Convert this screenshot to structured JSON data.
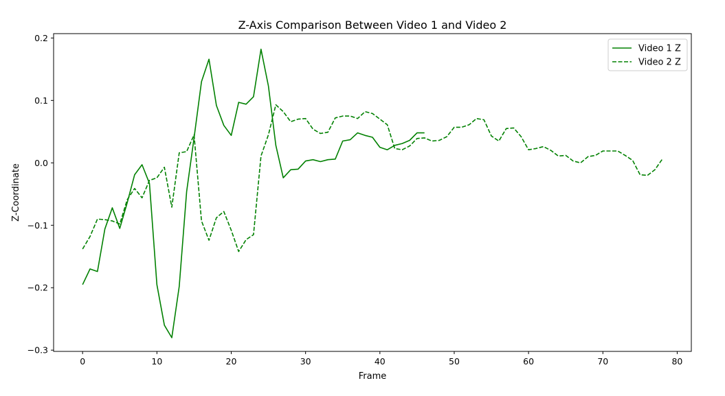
{
  "chart_data": {
    "type": "line",
    "title": "Z-Axis Comparison Between Video 1 and Video 2",
    "xlabel": "Frame",
    "ylabel": "Z-Coordinate",
    "xlim": [
      -3.9,
      81.9
    ],
    "ylim": [
      -0.302,
      0.207
    ],
    "xticks": [
      0,
      10,
      20,
      30,
      40,
      50,
      60,
      70,
      80
    ],
    "xtick_labels": [
      "0",
      "10",
      "20",
      "30",
      "40",
      "50",
      "60",
      "70",
      "80"
    ],
    "yticks": [
      -0.3,
      -0.2,
      -0.1,
      0.0,
      0.1,
      0.2
    ],
    "ytick_labels": [
      "−0.3",
      "−0.2",
      "−0.1",
      "0.0",
      "0.1",
      "0.2"
    ],
    "grid": false,
    "legend_position": "top-right",
    "colors": {
      "series": "#008000",
      "axes": "#000000",
      "background": "#ffffff"
    },
    "series": [
      {
        "name": "Video 1 Z",
        "style": "solid",
        "x": [
          0,
          1,
          2,
          3,
          4,
          5,
          6,
          7,
          8,
          9,
          10,
          11,
          12,
          13,
          14,
          15,
          16,
          17,
          18,
          19,
          20,
          21,
          22,
          23,
          24,
          25,
          26,
          27,
          28,
          29,
          30,
          31,
          32,
          33,
          34,
          35,
          36,
          37,
          38,
          39,
          40,
          41,
          42,
          43,
          44,
          45,
          46
        ],
        "y": [
          -0.195,
          -0.17,
          -0.174,
          -0.106,
          -0.072,
          -0.105,
          -0.064,
          -0.019,
          -0.003,
          -0.033,
          -0.195,
          -0.26,
          -0.28,
          -0.198,
          -0.046,
          0.04,
          0.13,
          0.166,
          0.092,
          0.06,
          0.044,
          0.097,
          0.094,
          0.106,
          0.182,
          0.123,
          0.028,
          -0.024,
          -0.011,
          -0.01,
          0.003,
          0.005,
          0.002,
          0.005,
          0.006,
          0.035,
          0.037,
          0.048,
          0.044,
          0.041,
          0.025,
          0.021,
          0.028,
          0.031,
          0.036,
          0.048,
          0.048
        ]
      },
      {
        "name": "Video 2 Z",
        "style": "dashed",
        "x": [
          0,
          1,
          2,
          3,
          4,
          5,
          6,
          7,
          8,
          9,
          10,
          11,
          12,
          13,
          14,
          15,
          16,
          17,
          18,
          19,
          20,
          21,
          22,
          23,
          24,
          25,
          26,
          27,
          28,
          29,
          30,
          31,
          32,
          33,
          34,
          35,
          36,
          37,
          38,
          39,
          40,
          41,
          42,
          43,
          44,
          45,
          46,
          47,
          48,
          49,
          50,
          51,
          52,
          53,
          54,
          55,
          56,
          57,
          58,
          59,
          60,
          61,
          62,
          63,
          64,
          65,
          66,
          67,
          68,
          69,
          70,
          71,
          72,
          73,
          74,
          75,
          76,
          77,
          78
        ],
        "y": [
          -0.138,
          -0.118,
          -0.09,
          -0.091,
          -0.093,
          -0.098,
          -0.059,
          -0.041,
          -0.056,
          -0.028,
          -0.024,
          -0.007,
          -0.071,
          0.016,
          0.018,
          0.045,
          -0.093,
          -0.124,
          -0.088,
          -0.078,
          -0.108,
          -0.142,
          -0.123,
          -0.115,
          0.011,
          0.045,
          0.093,
          0.082,
          0.066,
          0.07,
          0.071,
          0.054,
          0.047,
          0.049,
          0.072,
          0.075,
          0.075,
          0.071,
          0.082,
          0.079,
          0.07,
          0.061,
          0.023,
          0.021,
          0.027,
          0.039,
          0.04,
          0.035,
          0.036,
          0.042,
          0.057,
          0.057,
          0.061,
          0.071,
          0.069,
          0.043,
          0.035,
          0.055,
          0.056,
          0.042,
          0.021,
          0.023,
          0.026,
          0.02,
          0.011,
          0.012,
          0.003,
          0.0,
          0.01,
          0.012,
          0.019,
          0.019,
          0.019,
          0.012,
          0.004,
          -0.019,
          -0.02,
          -0.011,
          0.006
        ]
      }
    ]
  }
}
